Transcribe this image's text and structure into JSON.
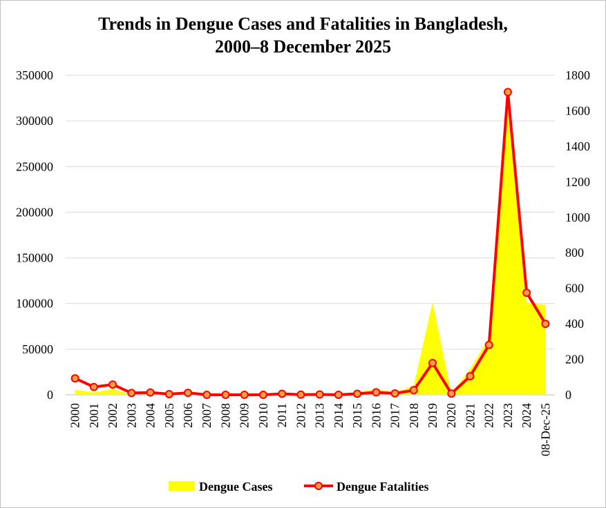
{
  "chart_data": {
    "type": "area+line",
    "title_line1": "Trends  in Dengue Cases and Fatalities in Bangladesh,",
    "title_line2": "2000–8 December 2025",
    "categories": [
      "2000",
      "2001",
      "2002",
      "2003",
      "2004",
      "2005",
      "2006",
      "2007",
      "2008",
      "2009",
      "2010",
      "2011",
      "2012",
      "2013",
      "2014",
      "2015",
      "2016",
      "2017",
      "2018",
      "2019",
      "2020",
      "2021",
      "2022",
      "2023",
      "2024",
      "08-Dec-25"
    ],
    "series": [
      {
        "name": "Dengue Cases",
        "type": "area",
        "axis": "left",
        "color": "#ffff00",
        "values": [
          5551,
          2430,
          6232,
          486,
          3934,
          1048,
          2200,
          466,
          1153,
          474,
          409,
          1359,
          671,
          1749,
          375,
          3162,
          6060,
          2769,
          10148,
          101354,
          1405,
          28429,
          62382,
          321179,
          101214,
          98500
        ]
      },
      {
        "name": "Dengue Fatalities",
        "type": "line",
        "axis": "right",
        "color": "#ff0000",
        "marker_fill": "#f4a040",
        "values": [
          93,
          44,
          58,
          10,
          13,
          4,
          11,
          0,
          0,
          0,
          0,
          6,
          1,
          2,
          0,
          6,
          14,
          8,
          26,
          179,
          7,
          105,
          281,
          1705,
          575,
          400
        ]
      }
    ],
    "y_left": {
      "min": 0,
      "max": 350000,
      "ticks": [
        0,
        50000,
        100000,
        150000,
        200000,
        250000,
        300000,
        350000
      ]
    },
    "y_right": {
      "min": 0,
      "max": 1800,
      "ticks": [
        0,
        200,
        400,
        600,
        800,
        1000,
        1200,
        1400,
        1600,
        1800
      ]
    },
    "grid": true,
    "legend_position": "bottom"
  }
}
